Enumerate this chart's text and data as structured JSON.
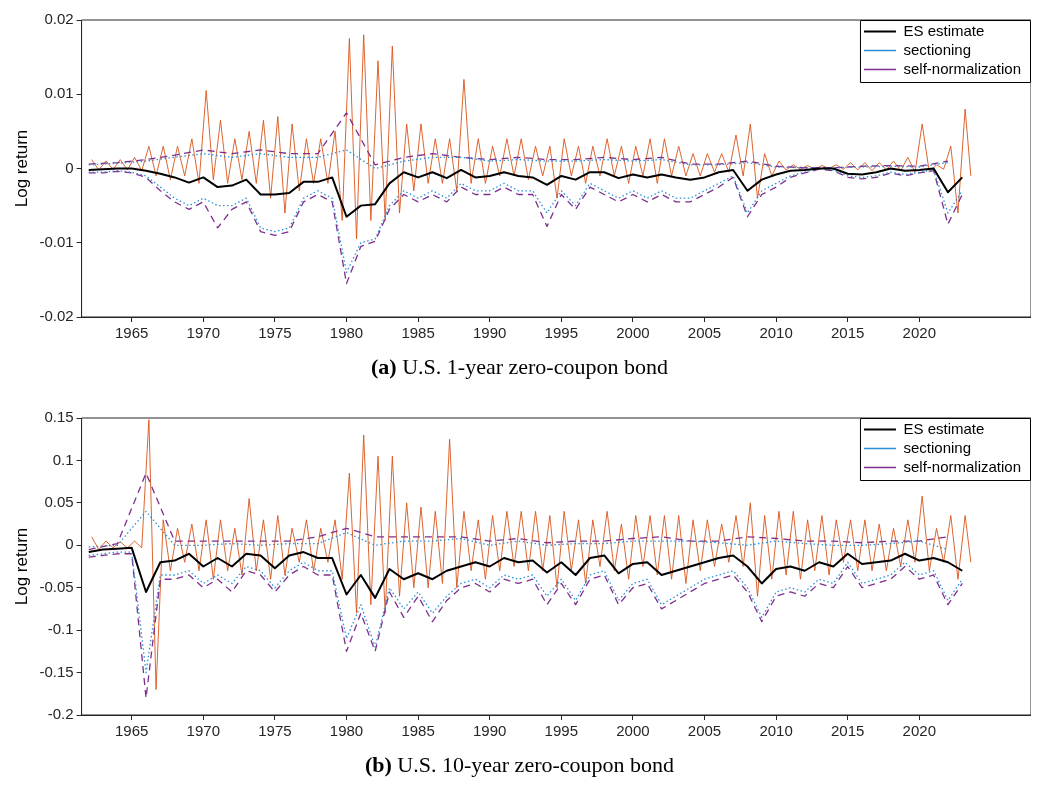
{
  "chart_data": [
    {
      "type": "line",
      "ylabel": "Log return",
      "xlim": [
        1961.5,
        2027.8
      ],
      "xticks": [
        1965,
        1970,
        1975,
        1980,
        1985,
        1990,
        1995,
        2000,
        2005,
        2010,
        2015,
        2020
      ],
      "ylim": [
        -0.02,
        0.02
      ],
      "yticks": [
        -0.02,
        -0.01,
        0,
        0.01,
        0.02
      ],
      "legend": "top right",
      "grid": false,
      "annotations": [
        "(a) U.S. 1-year zero-coupon bond"
      ],
      "series": [
        {
          "name": "ES estimate",
          "color": "#000000",
          "line_style": "solid",
          "x": [
            1962,
            1963,
            1964,
            1965,
            1966,
            1967,
            1968,
            1969,
            1970,
            1971,
            1972,
            1973,
            1974,
            1975,
            1976,
            1977,
            1978,
            1979,
            1980,
            1981,
            1982,
            1983,
            1984,
            1985,
            1986,
            1987,
            1988,
            1989,
            1990,
            1991,
            1992,
            1993,
            1994,
            1995,
            1996,
            1997,
            1998,
            1999,
            2000,
            2001,
            2002,
            2003,
            2004,
            2005,
            2006,
            2007,
            2008,
            2009,
            2010,
            2011,
            2012,
            2013,
            2014,
            2015,
            2016,
            2017,
            2018,
            2019,
            2020,
            2021,
            2022,
            2023
          ],
          "values": [
            -0.0002,
            -0.0001,
            0,
            0,
            -0.0003,
            -0.0007,
            -0.0012,
            -0.0019,
            -0.0012,
            -0.0025,
            -0.0023,
            -0.0015,
            -0.0035,
            -0.0035,
            -0.0033,
            -0.0018,
            -0.0018,
            -0.0012,
            -0.0065,
            -0.005,
            -0.0048,
            -0.002,
            -0.0005,
            -0.0012,
            -0.0005,
            -0.0013,
            -0.0002,
            -0.0012,
            -0.001,
            -0.0005,
            -0.001,
            -0.0012,
            -0.0022,
            -0.001,
            -0.0015,
            -0.0005,
            -0.0005,
            -0.0013,
            -0.0008,
            -0.0012,
            -0.0008,
            -0.0012,
            -0.0015,
            -0.0012,
            -0.0005,
            -0.0002,
            -0.003,
            -0.0015,
            -0.0008,
            -0.0003,
            -0.0002,
            0,
            0,
            -0.0007,
            -0.0008,
            -0.0005,
            0,
            -0.0003,
            -0.0002,
            0,
            -0.0032,
            -0.0012
          ]
        },
        {
          "name": "sectioning",
          "color": "#2b8fd6",
          "line_style": "dotted",
          "x": [
            1962,
            1963,
            1964,
            1965,
            1966,
            1967,
            1968,
            1969,
            1970,
            1971,
            1972,
            1973,
            1974,
            1975,
            1976,
            1977,
            1978,
            1979,
            1980,
            1981,
            1982,
            1983,
            1984,
            1985,
            1986,
            1987,
            1988,
            1989,
            1990,
            1991,
            1992,
            1993,
            1994,
            1995,
            1996,
            1997,
            1998,
            1999,
            2000,
            2001,
            2002,
            2003,
            2004,
            2005,
            2006,
            2007,
            2008,
            2009,
            2010,
            2011,
            2012,
            2013,
            2014,
            2015,
            2016,
            2017,
            2018,
            2019,
            2020,
            2021,
            2022,
            2023
          ],
          "values": [
            -0.0005,
            -0.0005,
            -0.0003,
            -0.0005,
            -0.001,
            -0.0025,
            -0.004,
            -0.005,
            -0.004,
            -0.005,
            -0.005,
            -0.004,
            -0.008,
            -0.0085,
            -0.008,
            -0.004,
            -0.003,
            -0.004,
            -0.014,
            -0.01,
            -0.0095,
            -0.005,
            -0.003,
            -0.004,
            -0.003,
            -0.004,
            -0.002,
            -0.003,
            -0.003,
            -0.002,
            -0.003,
            -0.003,
            -0.006,
            -0.003,
            -0.005,
            -0.002,
            -0.003,
            -0.004,
            -0.003,
            -0.004,
            -0.003,
            -0.004,
            -0.004,
            -0.003,
            -0.002,
            -0.001,
            -0.006,
            -0.003,
            -0.002,
            -0.001,
            -0.0005,
            0,
            -0.0002,
            -0.001,
            -0.0012,
            -0.001,
            -0.0005,
            -0.0008,
            -0.0005,
            -0.0002,
            -0.006,
            -0.003
          ]
        },
        {
          "color": "#2b8fd6",
          "line_style": "dotted",
          "x": [
            1962,
            1964,
            1966,
            1968,
            1970,
            1972,
            1974,
            1976,
            1978,
            1980,
            1982,
            1984,
            1986,
            1988,
            1990,
            1992,
            1994,
            1996,
            1998,
            2000,
            2002,
            2004,
            2006,
            2008,
            2010,
            2012,
            2014,
            2016,
            2018,
            2020,
            2022
          ],
          "values": [
            0.0005,
            0.0007,
            0.001,
            0.0015,
            0.002,
            0.0015,
            0.002,
            0.0015,
            0.0015,
            0.0025,
            0,
            0.001,
            0.0015,
            0.0015,
            0.001,
            0.0012,
            0.001,
            0.001,
            0.0012,
            0.001,
            0.0012,
            0.0005,
            0.0005,
            0.0008,
            0.0002,
            0.0001,
            0.0001,
            0.0002,
            0.0003,
            0.0002,
            0.0008
          ]
        },
        {
          "name": "self-normalization",
          "color": "#7e2f8e",
          "line_style": "dashed",
          "x": [
            1962,
            1963,
            1964,
            1965,
            1966,
            1967,
            1968,
            1969,
            1970,
            1971,
            1972,
            1973,
            1974,
            1975,
            1976,
            1977,
            1978,
            1979,
            1980,
            1981,
            1982,
            1983,
            1984,
            1985,
            1986,
            1987,
            1988,
            1989,
            1990,
            1991,
            1992,
            1993,
            1994,
            1995,
            1996,
            1997,
            1998,
            1999,
            2000,
            2001,
            2002,
            2003,
            2004,
            2005,
            2006,
            2007,
            2008,
            2009,
            2010,
            2011,
            2012,
            2013,
            2014,
            2015,
            2016,
            2017,
            2018,
            2019,
            2020,
            2021,
            2022,
            2023
          ],
          "values": [
            -0.0006,
            -0.0006,
            -0.0004,
            -0.0006,
            -0.0012,
            -0.003,
            -0.0045,
            -0.0055,
            -0.0045,
            -0.008,
            -0.0055,
            -0.0045,
            -0.0085,
            -0.009,
            -0.0085,
            -0.0045,
            -0.0035,
            -0.0045,
            -0.0155,
            -0.0105,
            -0.0098,
            -0.0055,
            -0.0035,
            -0.0045,
            -0.0035,
            -0.0045,
            -0.0025,
            -0.0035,
            -0.0035,
            -0.0025,
            -0.0035,
            -0.0035,
            -0.0078,
            -0.0035,
            -0.0055,
            -0.0025,
            -0.0035,
            -0.0045,
            -0.0035,
            -0.0045,
            -0.0035,
            -0.0045,
            -0.0045,
            -0.0035,
            -0.0025,
            -0.0012,
            -0.0065,
            -0.0035,
            -0.0025,
            -0.0012,
            -0.0006,
            -0.0001,
            -0.0003,
            -0.0012,
            -0.0014,
            -0.0012,
            -0.0006,
            -0.001,
            -0.0006,
            -0.0003,
            -0.0075,
            -0.0035
          ]
        },
        {
          "color": "#7e2f8e",
          "line_style": "dashed",
          "x": [
            1962,
            1964,
            1966,
            1968,
            1970,
            1972,
            1974,
            1976,
            1978,
            1980,
            1982,
            1984,
            1986,
            1988,
            1990,
            1992,
            1994,
            1996,
            1998,
            2000,
            2002,
            2004,
            2006,
            2008,
            2010,
            2012,
            2014,
            2016,
            2018,
            2020,
            2022
          ],
          "values": [
            0.0006,
            0.0008,
            0.0012,
            0.0018,
            0.0025,
            0.002,
            0.0025,
            0.002,
            0.002,
            0.0075,
            0.0005,
            0.0015,
            0.002,
            0.0015,
            0.0012,
            0.0015,
            0.0012,
            0.0012,
            0.0015,
            0.0012,
            0.0015,
            0.0006,
            0.0006,
            0.001,
            0.0003,
            0.0001,
            0.0001,
            0.0003,
            0.0004,
            0.0003,
            0.001
          ]
        },
        {
          "color": "#d95319",
          "line_style": "solid",
          "x": [
            1962.2,
            1962.7,
            1963.2,
            1963.7,
            1964.2,
            1964.7,
            1965.2,
            1965.7,
            1966.2,
            1966.7,
            1967.2,
            1967.7,
            1968.2,
            1968.7,
            1969.2,
            1969.7,
            1970.2,
            1970.7,
            1971.2,
            1971.7,
            1972.2,
            1972.7,
            1973.2,
            1973.7,
            1974.2,
            1974.7,
            1975.2,
            1975.7,
            1976.2,
            1976.7,
            1977.2,
            1977.7,
            1978.2,
            1978.7,
            1979.2,
            1979.7,
            1980.2,
            1980.7,
            1981.2,
            1981.7,
            1982.2,
            1982.7,
            1983.2,
            1983.7,
            1984.2,
            1984.7,
            1985.2,
            1985.7,
            1986.2,
            1986.7,
            1987.2,
            1987.7,
            1988.2,
            1988.7,
            1989.2,
            1989.7,
            1990.2,
            1990.7,
            1991.2,
            1991.7,
            1992.2,
            1992.7,
            1993.2,
            1993.7,
            1994.2,
            1994.7,
            1995.2,
            1995.7,
            1996.2,
            1996.7,
            1997.2,
            1997.7,
            1998.2,
            1998.7,
            1999.2,
            1999.7,
            2000.2,
            2000.7,
            2001.2,
            2001.7,
            2002.2,
            2002.7,
            2003.2,
            2003.7,
            2004.2,
            2004.7,
            2005.2,
            2005.7,
            2006.2,
            2006.7,
            2007.2,
            2007.7,
            2008.2,
            2008.7,
            2009.2,
            2009.7,
            2010.2,
            2010.7,
            2011.2,
            2011.7,
            2012.2,
            2012.7,
            2013.2,
            2013.7,
            2014.2,
            2014.7,
            2015.2,
            2015.7,
            2016.2,
            2016.7,
            2017.2,
            2017.7,
            2018.2,
            2018.7,
            2019.2,
            2019.7,
            2020.2,
            2020.7,
            2021.2,
            2021.7,
            2022.2,
            2022.7,
            2023.2,
            2023.6
          ],
          "values": [
            0.0012,
            -0.0002,
            0.001,
            -0.0001,
            0.0012,
            -0.0002,
            0.0015,
            -0.0003,
            0.003,
            -0.001,
            0.003,
            -0.0015,
            0.003,
            -0.001,
            0.004,
            -0.002,
            0.0105,
            -0.0015,
            0.0065,
            -0.002,
            0.004,
            -0.0015,
            0.005,
            -0.002,
            0.0065,
            -0.004,
            0.007,
            -0.006,
            0.006,
            -0.003,
            0.004,
            -0.002,
            0.004,
            -0.002,
            0.005,
            -0.007,
            0.0175,
            -0.0095,
            0.018,
            -0.007,
            0.0145,
            -0.007,
            0.0165,
            -0.006,
            0.006,
            -0.003,
            0.006,
            -0.002,
            0.004,
            -0.002,
            0.004,
            -0.003,
            0.012,
            -0.002,
            0.004,
            -0.002,
            0.003,
            -0.001,
            0.004,
            -0.001,
            0.004,
            -0.0015,
            0.003,
            -0.001,
            0.003,
            -0.004,
            0.004,
            -0.001,
            0.003,
            -0.002,
            0.003,
            -0.001,
            0.004,
            -0.001,
            0.003,
            -0.002,
            0.003,
            -0.001,
            0.004,
            -0.002,
            0.004,
            -0.001,
            0.003,
            -0.001,
            0.002,
            -0.001,
            0.002,
            -0.0005,
            0.002,
            -0.0005,
            0.0045,
            -0.001,
            0.006,
            -0.004,
            0.002,
            -0.001,
            0.001,
            -0.0002,
            0.0005,
            -0.0001,
            0.0004,
            -0.0001,
            0.0004,
            0,
            0.0005,
            -0.0001,
            0.0008,
            -0.0002,
            0.0008,
            -0.0003,
            0.0008,
            -0.0002,
            0.001,
            -0.0003,
            0.0015,
            -0.0005,
            0.006,
            -0.0005,
            0.0005,
            -0.0001,
            0.003,
            -0.006,
            0.008,
            -0.001
          ]
        }
      ]
    },
    {
      "type": "line",
      "ylabel": "Log return",
      "xlim": [
        1961.5,
        2027.8
      ],
      "xticks": [
        1965,
        1970,
        1975,
        1980,
        1985,
        1990,
        1995,
        2000,
        2005,
        2010,
        2015,
        2020
      ],
      "ylim": [
        -0.2,
        0.15
      ],
      "yticks": [
        -0.2,
        -0.15,
        -0.1,
        -0.05,
        0,
        0.05,
        0.1,
        0.15
      ],
      "legend": "top right",
      "grid": false,
      "annotations": [
        "(b) U.S. 10-year zero-coupon bond"
      ],
      "series": [
        {
          "name": "ES estimate",
          "color": "#000000",
          "line_style": "solid",
          "x": [
            1962,
            1963,
            1964,
            1965,
            1966,
            1967,
            1968,
            1969,
            1970,
            1971,
            1972,
            1973,
            1974,
            1975,
            1976,
            1977,
            1978,
            1979,
            1980,
            1981,
            1982,
            1983,
            1984,
            1985,
            1986,
            1987,
            1988,
            1989,
            1990,
            1991,
            1992,
            1993,
            1994,
            1995,
            1996,
            1997,
            1998,
            1999,
            2000,
            2001,
            2002,
            2003,
            2004,
            2005,
            2006,
            2007,
            2008,
            2009,
            2010,
            2011,
            2012,
            2013,
            2014,
            2015,
            2016,
            2017,
            2018,
            2019,
            2020,
            2021,
            2022,
            2023
          ],
          "values": [
            -0.008,
            -0.005,
            -0.004,
            -0.003,
            -0.055,
            -0.02,
            -0.018,
            -0.01,
            -0.025,
            -0.015,
            -0.025,
            -0.01,
            -0.012,
            -0.027,
            -0.012,
            -0.008,
            -0.015,
            -0.015,
            -0.058,
            -0.035,
            -0.062,
            -0.028,
            -0.04,
            -0.033,
            -0.04,
            -0.03,
            -0.025,
            -0.02,
            -0.025,
            -0.015,
            -0.02,
            -0.018,
            -0.032,
            -0.02,
            -0.035,
            -0.015,
            -0.012,
            -0.033,
            -0.022,
            -0.02,
            -0.035,
            -0.03,
            -0.025,
            -0.02,
            -0.015,
            -0.012,
            -0.025,
            -0.045,
            -0.028,
            -0.025,
            -0.03,
            -0.02,
            -0.025,
            -0.01,
            -0.022,
            -0.02,
            -0.018,
            -0.01,
            -0.018,
            -0.015,
            -0.02,
            -0.03
          ]
        },
        {
          "name": "sectioning",
          "color": "#2b8fd6",
          "line_style": "dotted",
          "x": [
            1962,
            1963,
            1964,
            1965,
            1966,
            1967,
            1968,
            1969,
            1970,
            1971,
            1972,
            1973,
            1974,
            1975,
            1976,
            1977,
            1978,
            1979,
            1980,
            1981,
            1982,
            1983,
            1984,
            1985,
            1986,
            1987,
            1988,
            1989,
            1990,
            1991,
            1992,
            1993,
            1994,
            1995,
            1996,
            1997,
            1998,
            1999,
            2000,
            2001,
            2002,
            2003,
            2004,
            2005,
            2006,
            2007,
            2008,
            2009,
            2010,
            2011,
            2012,
            2013,
            2014,
            2015,
            2016,
            2017,
            2018,
            2019,
            2020,
            2021,
            2022,
            2023
          ],
          "values": [
            -0.012,
            -0.01,
            -0.008,
            -0.008,
            -0.15,
            -0.035,
            -0.035,
            -0.03,
            -0.045,
            -0.035,
            -0.045,
            -0.025,
            -0.03,
            -0.05,
            -0.03,
            -0.02,
            -0.03,
            -0.03,
            -0.11,
            -0.07,
            -0.12,
            -0.05,
            -0.075,
            -0.055,
            -0.08,
            -0.06,
            -0.045,
            -0.04,
            -0.05,
            -0.035,
            -0.04,
            -0.035,
            -0.06,
            -0.04,
            -0.065,
            -0.035,
            -0.03,
            -0.065,
            -0.045,
            -0.04,
            -0.07,
            -0.06,
            -0.05,
            -0.04,
            -0.035,
            -0.03,
            -0.05,
            -0.085,
            -0.055,
            -0.05,
            -0.055,
            -0.04,
            -0.045,
            -0.02,
            -0.045,
            -0.04,
            -0.035,
            -0.02,
            -0.035,
            -0.03,
            -0.065,
            -0.04
          ]
        },
        {
          "color": "#2b8fd6",
          "line_style": "dotted",
          "x": [
            1962,
            1964,
            1966,
            1968,
            1970,
            1972,
            1974,
            1976,
            1978,
            1980,
            1982,
            1984,
            1986,
            1988,
            1990,
            1992,
            1994,
            1996,
            1998,
            2000,
            2002,
            2004,
            2006,
            2008,
            2010,
            2012,
            2014,
            2016,
            2018,
            2020,
            2022
          ],
          "values": [
            -0.002,
            0,
            0.04,
            0,
            0,
            0.002,
            0,
            0.002,
            0.002,
            0.015,
            0,
            0.005,
            0.005,
            0.008,
            0,
            0.005,
            0,
            0.002,
            0.002,
            0.005,
            0.005,
            0.005,
            0.003,
            0,
            0.005,
            0.002,
            0,
            0,
            0.002,
            0.005,
            -0.005
          ]
        },
        {
          "name": "self-normalization",
          "color": "#7e2f8e",
          "line_style": "dashed",
          "x": [
            1962,
            1963,
            1964,
            1965,
            1966,
            1967,
            1968,
            1969,
            1970,
            1971,
            1972,
            1973,
            1974,
            1975,
            1976,
            1977,
            1978,
            1979,
            1980,
            1981,
            1982,
            1983,
            1984,
            1985,
            1986,
            1987,
            1988,
            1989,
            1990,
            1991,
            1992,
            1993,
            1994,
            1995,
            1996,
            1997,
            1998,
            1999,
            2000,
            2001,
            2002,
            2003,
            2004,
            2005,
            2006,
            2007,
            2008,
            2009,
            2010,
            2011,
            2012,
            2013,
            2014,
            2015,
            2016,
            2017,
            2018,
            2019,
            2020,
            2021,
            2022,
            2023
          ],
          "values": [
            -0.014,
            -0.012,
            -0.01,
            -0.01,
            -0.18,
            -0.04,
            -0.04,
            -0.035,
            -0.05,
            -0.04,
            -0.055,
            -0.03,
            -0.035,
            -0.055,
            -0.035,
            -0.025,
            -0.035,
            -0.035,
            -0.125,
            -0.08,
            -0.125,
            -0.055,
            -0.085,
            -0.06,
            -0.09,
            -0.065,
            -0.05,
            -0.045,
            -0.055,
            -0.04,
            -0.045,
            -0.04,
            -0.07,
            -0.045,
            -0.07,
            -0.04,
            -0.035,
            -0.07,
            -0.05,
            -0.045,
            -0.075,
            -0.065,
            -0.055,
            -0.045,
            -0.04,
            -0.035,
            -0.055,
            -0.09,
            -0.06,
            -0.055,
            -0.06,
            -0.045,
            -0.05,
            -0.025,
            -0.05,
            -0.045,
            -0.04,
            -0.025,
            -0.04,
            -0.035,
            -0.07,
            -0.045
          ]
        },
        {
          "color": "#7e2f8e",
          "line_style": "dashed",
          "x": [
            1962,
            1964,
            1966,
            1968,
            1970,
            1972,
            1974,
            1976,
            1978,
            1980,
            1982,
            1984,
            1986,
            1988,
            1990,
            1992,
            1994,
            1996,
            1998,
            2000,
            2002,
            2004,
            2006,
            2008,
            2010,
            2012,
            2014,
            2016,
            2018,
            2020,
            2022
          ],
          "values": [
            -0.005,
            0.002,
            0.085,
            0.005,
            0.005,
            0.005,
            0.005,
            0.005,
            0.01,
            0.02,
            0.01,
            0.01,
            0.01,
            0.01,
            0.005,
            0.008,
            0.003,
            0.005,
            0.005,
            0.008,
            0.01,
            0.005,
            0.005,
            0.01,
            0.008,
            0.005,
            0.005,
            0.003,
            0.005,
            0.005,
            0.01
          ]
        },
        {
          "color": "#d95319",
          "line_style": "solid",
          "x": [
            1962.2,
            1962.7,
            1963.2,
            1963.7,
            1964.2,
            1964.7,
            1965.2,
            1965.7,
            1966.2,
            1966.7,
            1967.2,
            1967.7,
            1968.2,
            1968.7,
            1969.2,
            1969.7,
            1970.2,
            1970.7,
            1971.2,
            1971.7,
            1972.2,
            1972.7,
            1973.2,
            1973.7,
            1974.2,
            1974.7,
            1975.2,
            1975.7,
            1976.2,
            1976.7,
            1977.2,
            1977.7,
            1978.2,
            1978.7,
            1979.2,
            1979.7,
            1980.2,
            1980.7,
            1981.2,
            1981.7,
            1982.2,
            1982.7,
            1983.2,
            1983.7,
            1984.2,
            1984.7,
            1985.2,
            1985.7,
            1986.2,
            1986.7,
            1987.2,
            1987.7,
            1988.2,
            1988.7,
            1989.2,
            1989.7,
            1990.2,
            1990.7,
            1991.2,
            1991.7,
            1992.2,
            1992.7,
            1993.2,
            1993.7,
            1994.2,
            1994.7,
            1995.2,
            1995.7,
            1996.2,
            1996.7,
            1997.2,
            1997.7,
            1998.2,
            1998.7,
            1999.2,
            1999.7,
            2000.2,
            2000.7,
            2001.2,
            2001.7,
            2002.2,
            2002.7,
            2003.2,
            2003.7,
            2004.2,
            2004.7,
            2005.2,
            2005.7,
            2006.2,
            2006.7,
            2007.2,
            2007.7,
            2008.2,
            2008.7,
            2009.2,
            2009.7,
            2010.2,
            2010.7,
            2011.2,
            2011.7,
            2012.2,
            2012.7,
            2013.2,
            2013.7,
            2014.2,
            2014.7,
            2015.2,
            2015.7,
            2016.2,
            2016.7,
            2017.2,
            2017.7,
            2018.2,
            2018.7,
            2019.2,
            2019.7,
            2020.2,
            2020.7,
            2021.2,
            2021.7,
            2022.2,
            2022.7,
            2023.2,
            2023.6
          ],
          "values": [
            0.01,
            -0.005,
            0.005,
            -0.003,
            0.004,
            -0.003,
            0.005,
            -0.003,
            0.148,
            -0.17,
            0.03,
            -0.03,
            0.02,
            -0.02,
            0.025,
            -0.03,
            0.03,
            -0.04,
            0.03,
            -0.03,
            0.02,
            -0.035,
            0.055,
            -0.03,
            0.03,
            -0.04,
            0.035,
            -0.035,
            0.02,
            -0.02,
            0.03,
            -0.03,
            0.02,
            -0.02,
            0.03,
            -0.04,
            0.085,
            -0.08,
            0.13,
            -0.07,
            0.105,
            -0.08,
            0.105,
            -0.06,
            0.05,
            -0.05,
            0.045,
            -0.05,
            0.04,
            -0.045,
            0.125,
            -0.05,
            0.04,
            -0.03,
            0.03,
            -0.04,
            0.035,
            -0.03,
            0.04,
            -0.025,
            0.04,
            -0.03,
            0.04,
            -0.03,
            0.035,
            -0.05,
            0.04,
            -0.03,
            0.03,
            -0.045,
            0.03,
            -0.025,
            0.04,
            -0.03,
            0.025,
            -0.04,
            0.035,
            -0.025,
            0.035,
            -0.035,
            0.035,
            -0.04,
            0.035,
            -0.045,
            0.03,
            -0.03,
            0.03,
            -0.025,
            0.025,
            -0.02,
            0.035,
            -0.025,
            0.05,
            -0.06,
            0.035,
            -0.04,
            0.04,
            -0.035,
            0.04,
            -0.04,
            0.03,
            -0.03,
            0.035,
            -0.035,
            0.03,
            -0.02,
            0.03,
            -0.03,
            0.03,
            -0.03,
            0.025,
            -0.03,
            0.02,
            -0.025,
            0.03,
            -0.02,
            0.058,
            -0.03,
            0.02,
            -0.02,
            0.035,
            -0.04,
            0.035,
            -0.02
          ]
        }
      ]
    }
  ]
}
